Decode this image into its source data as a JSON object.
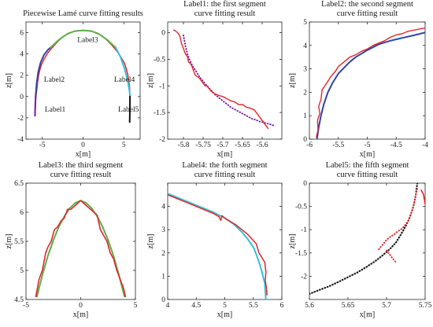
{
  "chart_data": [
    {
      "id": "overview",
      "type": "line",
      "title": [
        "Piecewise Lamé curve fitting results"
      ],
      "xlabel": "x[m]",
      "ylabel": "z[m]",
      "xlim": [
        -7,
        7
      ],
      "ylim": [
        -4,
        7
      ],
      "xticks": [
        -5,
        0,
        5
      ],
      "yticks": [
        -4,
        -2,
        0,
        2,
        4,
        6
      ],
      "tick_labels_x": [
        "-5",
        "0",
        "5"
      ],
      "tick_labels_y": [
        "-4",
        "-2",
        "0",
        "2",
        "4",
        "6"
      ],
      "grid": false,
      "annotations": [
        {
          "text": "Label1",
          "x": -4.7,
          "y": -1.4
        },
        {
          "text": "Label2",
          "x": -4.8,
          "y": 1.4
        },
        {
          "text": "Label3",
          "x": -0.7,
          "y": 5.1
        },
        {
          "text": "Label4",
          "x": 3.8,
          "y": 1.4
        },
        {
          "text": "Label5",
          "x": 4.3,
          "y": -1.4
        }
      ],
      "series": [
        {
          "color": "#e3262b",
          "width": 1.5,
          "x": [
            -5.85,
            -5.86,
            -5.84,
            -5.82,
            -5.8,
            -5.76,
            -5.7,
            -5.62,
            -5.55,
            -5.45,
            -5.3,
            -5.1,
            -4.8,
            -4.4,
            -4.0,
            -3.5,
            -3.0,
            -2.4,
            -1.8,
            -1.2,
            -0.6,
            0.0,
            0.6,
            1.2,
            1.8,
            2.4,
            3.0,
            3.5,
            4.0,
            4.4,
            4.8,
            5.1,
            5.3,
            5.5,
            5.6,
            5.7,
            5.73,
            5.74,
            5.75
          ],
          "y": [
            -1.7,
            -1.4,
            -1.0,
            -0.6,
            -0.3,
            0.05,
            0.5,
            1.0,
            1.5,
            2.0,
            2.5,
            3.0,
            3.5,
            4.0,
            4.4,
            4.85,
            5.25,
            5.65,
            5.95,
            6.1,
            6.18,
            6.2,
            6.18,
            6.1,
            5.95,
            5.65,
            5.25,
            4.85,
            4.4,
            4.0,
            3.5,
            3.1,
            2.6,
            2.0,
            1.5,
            1.0,
            0.5,
            0.0,
            -0.3
          ]
        },
        {
          "color": "#7a1fa2",
          "width": 2,
          "x": [
            -5.9,
            -5.88,
            -5.85,
            -5.82
          ],
          "y": [
            -1.8,
            -1.2,
            -0.6,
            0.0
          ]
        },
        {
          "color": "#2e44a8",
          "width": 2,
          "x": [
            -5.82,
            -5.7,
            -5.5,
            -5.2,
            -4.8,
            -4.3,
            -4.0
          ],
          "y": [
            0.0,
            1.2,
            2.3,
            3.2,
            3.9,
            4.4,
            4.6
          ]
        },
        {
          "color": "#5cae4a",
          "width": 2,
          "x": [
            -4.0,
            -3.0,
            -2.0,
            -1.0,
            0.0,
            1.0,
            2.0,
            3.0,
            4.0
          ],
          "y": [
            4.6,
            5.3,
            5.85,
            6.15,
            6.22,
            6.15,
            5.85,
            5.3,
            4.6
          ]
        },
        {
          "color": "#33c0d6",
          "width": 2,
          "x": [
            4.0,
            4.6,
            5.1,
            5.5,
            5.7,
            5.75
          ],
          "y": [
            4.6,
            3.7,
            2.6,
            1.4,
            0.5,
            0.0
          ]
        },
        {
          "color": "#111111",
          "width": 2,
          "x": [
            5.75,
            5.74,
            5.72
          ],
          "y": [
            0.0,
            -1.2,
            -2.4
          ]
        }
      ]
    },
    {
      "id": "label1",
      "type": "line",
      "title": [
        "Label1: the first segment",
        "curve fitting result"
      ],
      "xlabel": "x[m]",
      "ylabel": "z[m]",
      "xlim": [
        -5.84,
        -5.55
      ],
      "ylim": [
        -2,
        0.2
      ],
      "xticks": [
        -5.8,
        -5.75,
        -5.7,
        -5.65,
        -5.6
      ],
      "yticks": [
        -2,
        -1.5,
        -1,
        -0.5,
        0
      ],
      "tick_labels_x": [
        "-5.8",
        "-5.75",
        "-5.7",
        "-5.65",
        "-5.6"
      ],
      "tick_labels_y": [
        "-2",
        "-1.5",
        "-1",
        "-0.5",
        "0"
      ],
      "grid": false,
      "series": [
        {
          "style": "dotted",
          "color": "#7a1fa2",
          "width": 2,
          "x": [
            -5.8,
            -5.795,
            -5.79,
            -5.785,
            -5.78,
            -5.775,
            -5.77,
            -5.765,
            -5.76,
            -5.755,
            -5.75,
            -5.745,
            -5.74,
            -5.735,
            -5.73,
            -5.725,
            -5.72,
            -5.715,
            -5.71,
            -5.705,
            -5.7,
            -5.695,
            -5.69,
            -5.685,
            -5.68,
            -5.675,
            -5.67,
            -5.665,
            -5.66,
            -5.655,
            -5.65,
            -5.645,
            -5.64,
            -5.635,
            -5.63,
            -5.625,
            -5.62,
            -5.615,
            -5.61,
            -5.605,
            -5.6,
            -5.595,
            -5.59,
            -5.585,
            -5.58,
            -5.575,
            -5.57
          ],
          "y": [
            -0.05,
            -0.25,
            -0.4,
            -0.5,
            -0.58,
            -0.65,
            -0.7,
            -0.76,
            -0.82,
            -0.87,
            -0.91,
            -0.96,
            -1.0,
            -1.04,
            -1.08,
            -1.12,
            -1.16,
            -1.19,
            -1.22,
            -1.25,
            -1.28,
            -1.31,
            -1.34,
            -1.37,
            -1.4,
            -1.42,
            -1.44,
            -1.46,
            -1.48,
            -1.5,
            -1.52,
            -1.54,
            -1.56,
            -1.58,
            -1.6,
            -1.62,
            -1.63,
            -1.64,
            -1.66,
            -1.67,
            -1.68,
            -1.69,
            -1.7,
            -1.71,
            -1.72,
            -1.73,
            -1.75
          ]
        },
        {
          "style": "solid",
          "color": "#e3262b",
          "width": 1.4,
          "x": [
            -5.825,
            -5.82,
            -5.815,
            -5.81,
            -5.808,
            -5.805,
            -5.8,
            -5.795,
            -5.79,
            -5.787,
            -5.78,
            -5.775,
            -5.77,
            -5.76,
            -5.755,
            -5.75,
            -5.745,
            -5.74,
            -5.73,
            -5.72,
            -5.71,
            -5.7,
            -5.69,
            -5.68,
            -5.67,
            -5.66,
            -5.65,
            -5.64,
            -5.63,
            -5.62,
            -5.615,
            -5.61,
            -5.605,
            -5.6,
            -5.595,
            -5.59,
            -5.585
          ],
          "y": [
            0.05,
            0.03,
            0.0,
            -0.05,
            -0.1,
            -0.2,
            -0.3,
            -0.4,
            -0.45,
            -0.55,
            -0.6,
            -0.7,
            -0.8,
            -0.85,
            -0.9,
            -0.95,
            -1.0,
            -1.0,
            -1.1,
            -1.15,
            -1.18,
            -1.2,
            -1.24,
            -1.28,
            -1.3,
            -1.35,
            -1.35,
            -1.4,
            -1.42,
            -1.45,
            -1.5,
            -1.55,
            -1.6,
            -1.65,
            -1.7,
            -1.75,
            -1.8
          ]
        }
      ]
    },
    {
      "id": "label2",
      "type": "line",
      "title": [
        "Label2: the second segment",
        "curve fitting result"
      ],
      "xlabel": "x[m]",
      "ylabel": "z[m]",
      "xlim": [
        -6,
        -4
      ],
      "ylim": [
        0,
        5
      ],
      "xticks": [
        -6,
        -5.5,
        -5,
        -4.5,
        -4
      ],
      "yticks": [
        0,
        1,
        2,
        3,
        4,
        5
      ],
      "tick_labels_x": [
        "-6",
        "-5.5",
        "-5",
        "-4.5",
        "-4"
      ],
      "tick_labels_y": [
        "0",
        "1",
        "2",
        "3",
        "4",
        "5"
      ],
      "grid": false,
      "series": [
        {
          "style": "solid",
          "color": "#2e44a8",
          "width": 2,
          "x": [
            -5.87,
            -5.84,
            -5.8,
            -5.75,
            -5.68,
            -5.6,
            -5.5,
            -5.4,
            -5.3,
            -5.2,
            -5.0,
            -4.8,
            -4.6,
            -4.4,
            -4.2,
            -4.0
          ],
          "y": [
            0.0,
            0.5,
            1.0,
            1.5,
            2.0,
            2.4,
            2.8,
            3.05,
            3.3,
            3.5,
            3.8,
            4.05,
            4.2,
            4.32,
            4.43,
            4.55
          ]
        },
        {
          "style": "solid",
          "color": "#e3262b",
          "width": 1.4,
          "x": [
            -5.88,
            -5.85,
            -5.86,
            -5.82,
            -5.84,
            -5.8,
            -5.78,
            -5.7,
            -5.62,
            -5.55,
            -5.5,
            -5.4,
            -5.3,
            -5.2,
            -5.1,
            -5.0,
            -4.9,
            -4.8,
            -4.7,
            -4.6,
            -4.5,
            -4.4,
            -4.3,
            -4.2,
            -4.1,
            -4.0
          ],
          "y": [
            0.1,
            0.4,
            0.8,
            1.1,
            1.4,
            1.7,
            2.1,
            2.4,
            2.7,
            2.9,
            3.1,
            3.3,
            3.5,
            3.6,
            3.75,
            3.85,
            4.0,
            4.1,
            4.2,
            4.35,
            4.45,
            4.5,
            4.6,
            4.65,
            4.7,
            4.75
          ]
        }
      ]
    },
    {
      "id": "label3",
      "type": "line",
      "title": [
        "Label3: the third segment",
        "curve fitting result"
      ],
      "xlabel": "x[m]",
      "ylabel": "z[m]",
      "xlim": [
        -5,
        5
      ],
      "ylim": [
        4.5,
        6.5
      ],
      "xticks": [
        -5,
        0,
        5
      ],
      "yticks": [
        4.5,
        5,
        5.5,
        6,
        6.5
      ],
      "tick_labels_x": [
        "-5",
        "0",
        "5"
      ],
      "tick_labels_y": [
        "4.5",
        "5",
        "5.5",
        "6",
        "6.5"
      ],
      "grid": false,
      "series": [
        {
          "style": "solid",
          "color": "#5cae4a",
          "width": 2,
          "x": [
            -4.0,
            -3.5,
            -3.0,
            -2.5,
            -2.0,
            -1.5,
            -1.0,
            -0.5,
            0.0,
            0.5,
            1.0,
            1.5,
            2.0,
            2.5,
            3.0,
            3.5,
            4.0
          ],
          "y": [
            4.55,
            4.92,
            5.25,
            5.52,
            5.75,
            5.93,
            6.07,
            6.16,
            6.2,
            6.16,
            6.07,
            5.93,
            5.75,
            5.52,
            5.25,
            4.92,
            4.55
          ]
        },
        {
          "style": "solid",
          "color": "#e3262b",
          "width": 1.6,
          "x": [
            -4.1,
            -3.8,
            -3.5,
            -3.2,
            -3.0,
            -2.7,
            -2.4,
            -2.1,
            -1.8,
            -1.5,
            -1.2,
            -0.9,
            -0.6,
            -0.3,
            0.0,
            0.3,
            0.6,
            0.9,
            1.2,
            1.5,
            1.8,
            2.1,
            2.4,
            2.7,
            3.0,
            3.3,
            3.6,
            3.9,
            4.1
          ],
          "y": [
            4.55,
            4.85,
            5.0,
            5.3,
            5.4,
            5.5,
            5.7,
            5.75,
            5.85,
            5.9,
            6.05,
            6.05,
            6.1,
            6.15,
            6.2,
            6.15,
            6.1,
            6.05,
            6.0,
            5.95,
            5.7,
            5.6,
            5.5,
            5.3,
            5.2,
            5.0,
            4.85,
            4.7,
            4.55
          ]
        }
      ]
    },
    {
      "id": "label4",
      "type": "line",
      "title": [
        "Label4: the forth segment",
        "curve fitting result"
      ],
      "xlabel": "x[m]",
      "ylabel": "z[m]",
      "xlim": [
        4,
        6
      ],
      "ylim": [
        0,
        5
      ],
      "xticks": [
        4,
        4.5,
        5,
        5.5,
        6
      ],
      "yticks": [
        0,
        1,
        2,
        3,
        4
      ],
      "tick_labels_x": [
        "4",
        "4.5",
        "5",
        "5.5",
        "6"
      ],
      "tick_labels_y": [
        "0",
        "1",
        "2",
        "3",
        "4"
      ],
      "grid": false,
      "series": [
        {
          "style": "solid",
          "color": "#33c0d6",
          "width": 2,
          "x": [
            4.0,
            4.2,
            4.4,
            4.6,
            4.8,
            5.0,
            5.15,
            5.3,
            5.4,
            5.5,
            5.55,
            5.6,
            5.65,
            5.7,
            5.72
          ],
          "y": [
            4.55,
            4.35,
            4.15,
            3.95,
            3.75,
            3.5,
            3.25,
            2.9,
            2.6,
            2.25,
            1.95,
            1.6,
            1.2,
            0.7,
            0.0
          ]
        },
        {
          "style": "solid",
          "color": "#e3262b",
          "width": 1.5,
          "x": [
            4.0,
            4.2,
            4.4,
            4.6,
            4.8,
            4.9,
            4.93,
            4.95,
            5.0,
            5.2,
            5.4,
            5.55,
            5.6,
            5.7,
            5.72,
            5.71,
            5.73,
            5.74
          ],
          "y": [
            4.5,
            4.3,
            4.1,
            3.9,
            3.7,
            3.55,
            3.4,
            3.6,
            3.5,
            3.2,
            2.8,
            2.4,
            2.0,
            1.6,
            1.2,
            0.8,
            0.5,
            0.2
          ]
        }
      ]
    },
    {
      "id": "label5",
      "type": "line",
      "title": [
        "Label5: the fifth segment",
        "curve fitting result"
      ],
      "xlabel": "x[m]",
      "ylabel": "z[m]",
      "xlim": [
        5.6,
        5.75
      ],
      "ylim": [
        -2.5,
        0
      ],
      "xticks": [
        5.6,
        5.65,
        5.7,
        5.75
      ],
      "yticks": [
        -2,
        -1.5,
        -1,
        -0.5,
        0
      ],
      "tick_labels_x": [
        "5.6",
        "5.65",
        "5.7",
        "5.75"
      ],
      "tick_labels_y": [
        "-2",
        "-1.5",
        "-1",
        "-0.5",
        "0"
      ],
      "grid": false,
      "series": [
        {
          "style": "dotted",
          "color": "#111111",
          "width": 2.2,
          "x": [
            5.6,
            5.612,
            5.625,
            5.638,
            5.65,
            5.662,
            5.674,
            5.685,
            5.695,
            5.704,
            5.712,
            5.718,
            5.724,
            5.729,
            5.733,
            5.736,
            5.738,
            5.739,
            5.74
          ],
          "y": [
            -2.38,
            -2.3,
            -2.22,
            -2.12,
            -2.02,
            -1.92,
            -1.8,
            -1.68,
            -1.55,
            -1.42,
            -1.28,
            -1.12,
            -0.95,
            -0.78,
            -0.6,
            -0.42,
            -0.25,
            -0.1,
            0.0
          ]
        },
        {
          "style": "dotted",
          "color": "#e3262b",
          "width": 2,
          "x": [
            5.69,
            5.693,
            5.697,
            5.7,
            5.705,
            5.71,
            5.715,
            5.72,
            5.724,
            5.728,
            5.731,
            5.734,
            5.736,
            5.738,
            5.74
          ],
          "y": [
            -1.42,
            -1.36,
            -1.28,
            -1.22,
            -1.15,
            -1.1,
            -1.03,
            -0.98,
            -0.9,
            -0.82,
            -0.7,
            -0.55,
            -0.4,
            -0.25,
            -0.1
          ]
        },
        {
          "style": "solid",
          "color": "#e3262b",
          "width": 1.6,
          "x": [
            5.745,
            5.748,
            5.749,
            5.75
          ],
          "y": [
            -0.15,
            -0.25,
            -0.35,
            -0.45
          ]
        },
        {
          "style": "dotted",
          "color": "#e3262b",
          "width": 2,
          "x": [
            5.7,
            5.705,
            5.708,
            5.712
          ],
          "y": [
            -1.45,
            -1.55,
            -1.62,
            -1.7
          ]
        }
      ]
    }
  ]
}
